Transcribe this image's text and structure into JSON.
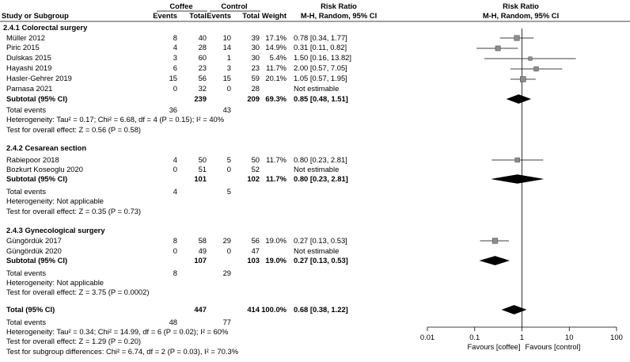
{
  "header": {
    "study_col": "Study or Subgroup",
    "group1": "Coffee",
    "group2": "Control",
    "events": "Events",
    "total": "Total",
    "weight": "Weight",
    "effect_header": "Risk Ratio",
    "effect_method": "M-H, Random, 95% CI",
    "plot_header": "Risk Ratio",
    "plot_method": "M-H, Random, 95% CI"
  },
  "subgroups": [
    {
      "title": "2.4.1 Colorectal surgery",
      "studies": [
        {
          "name": "Müller 2012",
          "e1": "8",
          "n1": "40",
          "e2": "10",
          "n2": "39",
          "weight": "17.1%",
          "ci_text": "0.78 [0.34, 1.77]"
        },
        {
          "name": "Piric 2015",
          "e1": "4",
          "n1": "28",
          "e2": "14",
          "n2": "30",
          "weight": "14.9%",
          "ci_text": "0.31 [0.11, 0.82]"
        },
        {
          "name": "Dulskas 2015",
          "e1": "3",
          "n1": "60",
          "e2": "1",
          "n2": "30",
          "weight": "5.4%",
          "ci_text": "1.50 [0.16, 13.82]"
        },
        {
          "name": "Hayashi 2019",
          "e1": "6",
          "n1": "23",
          "e2": "3",
          "n2": "23",
          "weight": "11.7%",
          "ci_text": "2.00 [0.57, 7.05]"
        },
        {
          "name": "Hasler-Gehrer 2019",
          "e1": "15",
          "n1": "56",
          "e2": "15",
          "n2": "59",
          "weight": "20.1%",
          "ci_text": "1.05 [0.57, 1.95]"
        },
        {
          "name": "Parnasa 2021",
          "e1": "0",
          "n1": "32",
          "e2": "0",
          "n2": "28",
          "weight": "",
          "ci_text": "Not estimable"
        }
      ],
      "subtotal": {
        "label": "Subtotal (95% CI)",
        "n1": "239",
        "n2": "209",
        "weight": "69.3%",
        "ci_text": "0.85 [0.48, 1.51]"
      },
      "total_events": {
        "label": "Total events",
        "e1": "36",
        "e2": "43"
      },
      "heterogeneity": "Heterogeneity: Tau² = 0.17; Chi² = 6.68, df = 4 (P = 0.15); I² = 40%",
      "overall": "Test for overall effect: Z = 0.56 (P = 0.58)"
    },
    {
      "title": "2.4.2 Cesarean section",
      "studies": [
        {
          "name": "Rabiepoor 2018",
          "e1": "4",
          "n1": "50",
          "e2": "5",
          "n2": "50",
          "weight": "11.7%",
          "ci_text": "0.80 [0.23, 2.81]"
        },
        {
          "name": "Bozkurt Koseoglu 2020",
          "e1": "0",
          "n1": "51",
          "e2": "0",
          "n2": "52",
          "weight": "",
          "ci_text": "Not estimable"
        }
      ],
      "subtotal": {
        "label": "Subtotal (95% CI)",
        "n1": "101",
        "n2": "102",
        "weight": "11.7%",
        "ci_text": "0.80 [0.23, 2.81]"
      },
      "total_events": {
        "label": "Total events",
        "e1": "4",
        "e2": "5"
      },
      "heterogeneity": "Heterogeneity: Not applicable",
      "overall": "Test for overall effect: Z = 0.35 (P = 0.73)"
    },
    {
      "title": "2.4.3 Gynecological surgery",
      "studies": [
        {
          "name": "Güngördük 2017",
          "e1": "8",
          "n1": "58",
          "e2": "29",
          "n2": "56",
          "weight": "19.0%",
          "ci_text": "0.27 [0.13, 0.53]"
        },
        {
          "name": "Güngördük 2020",
          "e1": "0",
          "n1": "49",
          "e2": "0",
          "n2": "47",
          "weight": "",
          "ci_text": "Not estimable"
        }
      ],
      "subtotal": {
        "label": "Subtotal (95% CI)",
        "n1": "107",
        "n2": "103",
        "weight": "19.0%",
        "ci_text": "0.27 [0.13, 0.53]"
      },
      "total_events": {
        "label": "Total events",
        "e1": "8",
        "e2": "29"
      },
      "heterogeneity": "Heterogeneity: Not applicable",
      "overall": "Test for overall effect: Z = 3.75 (P = 0.0002)"
    }
  ],
  "total": {
    "label": "Total (95% CI)",
    "n1": "447",
    "n2": "414",
    "weight": "100.0%",
    "ci_text": "0.68 [0.38, 1.22]"
  },
  "total_events": {
    "label": "Total events",
    "e1": "48",
    "e2": "77"
  },
  "heterogeneity": "Heterogeneity: Tau² = 0.34; Chi² = 14.99, df = 6 (P = 0.02); I² = 60%",
  "overall": "Test for overall effect: Z = 1.29 (P = 0.20)",
  "subgroup_diff": "Test for subgroup differences: Chi² = 6.74, df = 2 (P = 0.03), I² = 70.3%",
  "axis": {
    "ticks": [
      0.01,
      0.1,
      1,
      10,
      100
    ],
    "tick_labels": [
      "0.01",
      "0.1",
      "1",
      "10",
      "100"
    ],
    "favours_left": "Favours [coffee]",
    "favours_right": "Favours [control]"
  },
  "chart_data": {
    "type": "forest",
    "scale": "log",
    "xlim": [
      0.01,
      100
    ],
    "null_line": 1,
    "studies": [
      {
        "name": "Müller 2012",
        "rr": 0.78,
        "lo": 0.34,
        "hi": 1.77,
        "weight": 17.1
      },
      {
        "name": "Piric 2015",
        "rr": 0.31,
        "lo": 0.11,
        "hi": 0.82,
        "weight": 14.9
      },
      {
        "name": "Dulskas 2015",
        "rr": 1.5,
        "lo": 0.16,
        "hi": 13.82,
        "weight": 5.4
      },
      {
        "name": "Hayashi 2019",
        "rr": 2.0,
        "lo": 0.57,
        "hi": 7.05,
        "weight": 11.7
      },
      {
        "name": "Hasler-Gehrer 2019",
        "rr": 1.05,
        "lo": 0.57,
        "hi": 1.95,
        "weight": 20.1
      },
      {
        "name": "Parnasa 2021",
        "rr": null,
        "lo": null,
        "hi": null,
        "weight": null
      },
      {
        "name": "Rabiepoor 2018",
        "rr": 0.8,
        "lo": 0.23,
        "hi": 2.81,
        "weight": 11.7
      },
      {
        "name": "Bozkurt Koseoglu 2020",
        "rr": null,
        "lo": null,
        "hi": null,
        "weight": null
      },
      {
        "name": "Güngördük 2017",
        "rr": 0.27,
        "lo": 0.13,
        "hi": 0.53,
        "weight": 19.0
      },
      {
        "name": "Güngördük 2020",
        "rr": null,
        "lo": null,
        "hi": null,
        "weight": null
      }
    ],
    "pooled": [
      {
        "name": "Subtotal 2.4.1",
        "rr": 0.85,
        "lo": 0.48,
        "hi": 1.51
      },
      {
        "name": "Subtotal 2.4.2",
        "rr": 0.8,
        "lo": 0.23,
        "hi": 2.81
      },
      {
        "name": "Subtotal 2.4.3",
        "rr": 0.27,
        "lo": 0.13,
        "hi": 0.53
      },
      {
        "name": "Total",
        "rr": 0.68,
        "lo": 0.38,
        "hi": 1.22
      }
    ]
  }
}
